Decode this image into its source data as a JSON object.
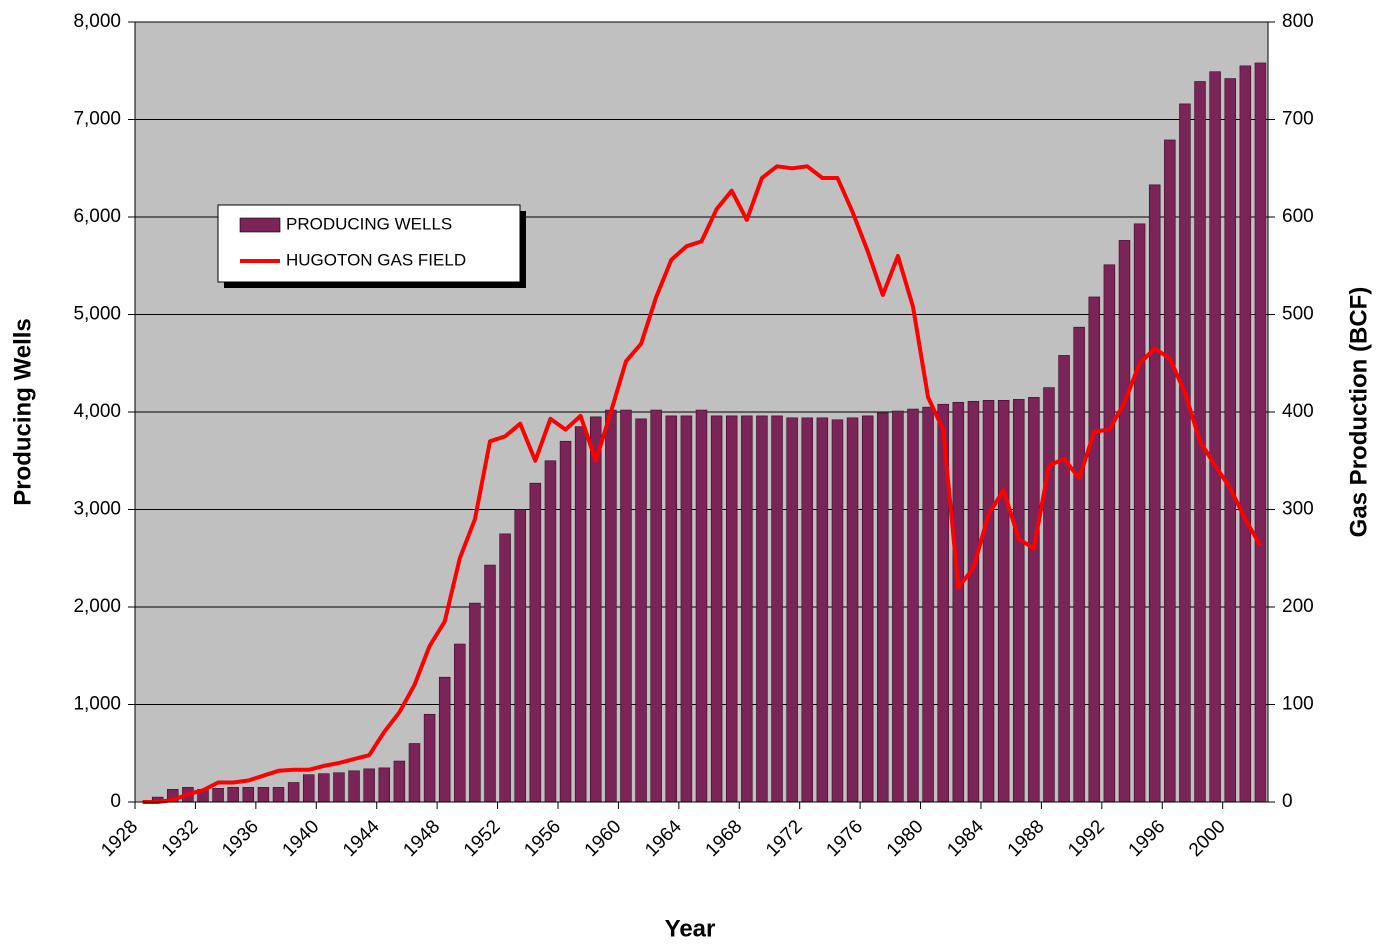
{
  "chart_data": {
    "type": "bar_line",
    "xlabel": "Year",
    "ylabel": "Producing Wells",
    "y2label": "Gas Production (BCF)",
    "categories": [
      "1928",
      null,
      null,
      null,
      "1932",
      null,
      null,
      null,
      "1936",
      null,
      null,
      null,
      "1940",
      null,
      null,
      null,
      "1944",
      null,
      null,
      null,
      "1948",
      null,
      null,
      null,
      "1952",
      null,
      null,
      null,
      "1956",
      null,
      null,
      null,
      "1960",
      null,
      null,
      null,
      "1964",
      null,
      null,
      null,
      "1968",
      null,
      null,
      null,
      "1972",
      null,
      null,
      null,
      "1976",
      null,
      null,
      null,
      "1980",
      null,
      null,
      null,
      "1984",
      null,
      null,
      null,
      "1988",
      null,
      null,
      null,
      "1992",
      null,
      null,
      null,
      "1996",
      null,
      null,
      null,
      "2000",
      null,
      null
    ],
    "series": [
      {
        "name": "PRODUCING WELLS",
        "color": "#7b2457",
        "values": [
          0,
          50,
          130,
          150,
          130,
          140,
          150,
          150,
          150,
          150,
          200,
          280,
          290,
          300,
          320,
          340,
          350,
          420,
          600,
          900,
          1280,
          1620,
          2040,
          2430,
          2750,
          3000,
          3270,
          3500,
          3700,
          3850,
          3950,
          4020,
          4020,
          3930,
          4020,
          3960,
          3960,
          4020,
          3960,
          3960,
          3960,
          3960,
          3960,
          3940,
          3940,
          3940,
          3920,
          3940,
          3960,
          3990,
          4010,
          4030,
          4050,
          4080,
          4100,
          4110,
          4120,
          4120,
          4130,
          4150,
          4250,
          4580,
          4870,
          5180,
          5510,
          5760,
          5930,
          6330,
          6790,
          7160,
          7390,
          7490,
          7420,
          7550,
          7580
        ]
      },
      {
        "name": "HUGOTON GAS FIELD",
        "color": "#ff0000",
        "axis": "y2",
        "values": [
          0,
          0,
          2,
          8,
          12,
          20,
          20,
          22,
          27,
          32,
          33,
          33,
          37,
          40,
          44,
          48,
          72,
          92,
          120,
          160,
          185,
          250,
          290,
          370,
          375,
          388,
          350,
          393,
          382,
          396,
          350,
          400,
          452,
          470,
          518,
          556,
          570,
          575,
          608,
          627,
          597,
          640,
          652,
          650,
          652,
          640,
          640,
          605,
          565,
          520,
          560,
          508,
          415,
          382,
          220,
          240,
          295,
          320,
          270,
          260,
          345,
          352,
          332,
          380,
          382,
          410,
          450,
          465,
          455,
          420,
          370,
          345,
          322,
          290,
          263
        ]
      }
    ],
    "ylim": [
      0,
      8000
    ],
    "yticks": [
      0,
      {
        "value": 1000,
        "label": "1,000"
      },
      {
        "value": 2000,
        "label": "2,000"
      },
      {
        "value": 3000,
        "label": "3,000"
      },
      {
        "value": 4000,
        "label": "4,000"
      },
      {
        "value": 5000,
        "label": "5,000"
      },
      {
        "value": 6000,
        "label": "6,000"
      },
      {
        "value": 7000,
        "label": "7,000"
      },
      {
        "value": 8000,
        "label": "8,000"
      }
    ],
    "y2lim": [
      0,
      800
    ],
    "y2ticks": [
      0,
      100,
      200,
      300,
      400,
      500,
      600,
      700,
      800
    ],
    "grid": true,
    "legend": "upper left"
  }
}
